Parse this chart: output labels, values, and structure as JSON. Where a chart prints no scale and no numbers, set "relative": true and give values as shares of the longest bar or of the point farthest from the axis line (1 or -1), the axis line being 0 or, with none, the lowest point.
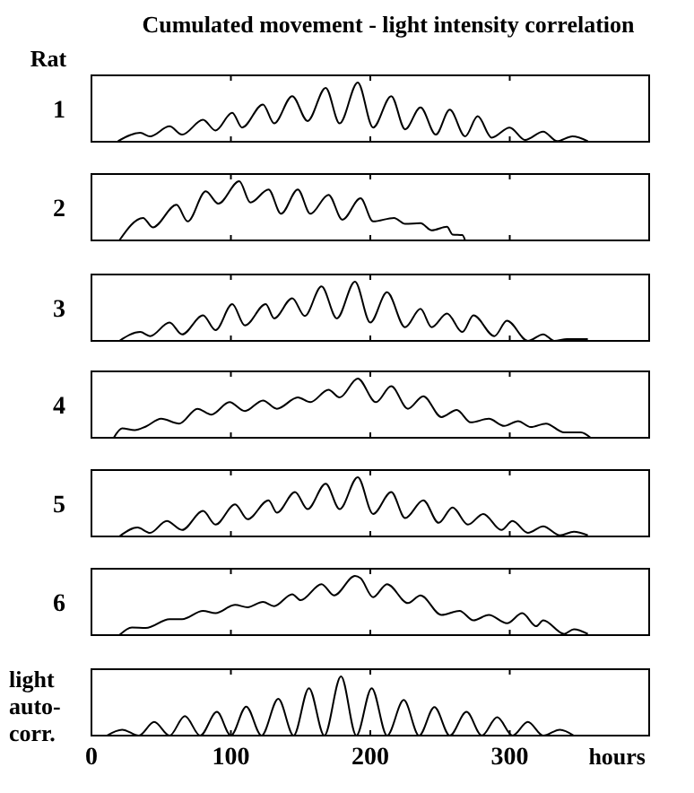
{
  "chart_data": [
    {
      "type": "line",
      "title": "Cumulated movement - light intensity correlation",
      "annotations": [
        "Rat"
      ],
      "ylabel": "1",
      "relative": true,
      "color": "#000000",
      "xlim": [
        0,
        400
      ],
      "xticks": [
        0,
        100,
        200,
        300
      ],
      "tick_labels": false,
      "x": [
        19,
        35,
        42,
        56,
        65,
        80,
        89,
        101,
        108,
        123,
        131,
        144,
        155,
        168,
        178,
        191,
        202,
        215,
        225,
        236,
        247,
        257,
        268,
        277,
        287,
        300,
        311,
        324,
        334,
        345,
        356
      ],
      "values": [
        0.01,
        0.15,
        0.09,
        0.26,
        0.12,
        0.37,
        0.19,
        0.49,
        0.24,
        0.63,
        0.31,
        0.77,
        0.35,
        0.91,
        0.31,
        1,
        0.24,
        0.77,
        0.21,
        0.58,
        0.12,
        0.54,
        0.09,
        0.43,
        0.07,
        0.24,
        0.03,
        0.17,
        0.01,
        0.09,
        0.01
      ]
    },
    {
      "type": "line",
      "ylabel": "2",
      "relative": true,
      "color": "#000000",
      "xlim": [
        0,
        400
      ],
      "xticks": [
        0,
        100,
        200,
        300
      ],
      "tick_labels": false,
      "x": [
        20,
        37,
        44,
        61,
        69,
        82,
        91,
        106,
        114,
        127,
        136,
        148,
        157,
        170,
        180,
        193,
        202,
        217,
        225,
        236,
        244,
        255,
        259,
        266,
        268
      ],
      "values": [
        0,
        0.38,
        0.22,
        0.6,
        0.32,
        0.83,
        0.62,
        1,
        0.64,
        0.86,
        0.45,
        0.86,
        0.45,
        0.77,
        0.35,
        0.71,
        0.32,
        0.38,
        0.28,
        0.29,
        0.17,
        0.23,
        0.1,
        0.09,
        0
      ]
    },
    {
      "type": "line",
      "ylabel": "3",
      "relative": true,
      "color": "#000000",
      "xlim": [
        0,
        400
      ],
      "xticks": [
        0,
        100,
        200,
        300
      ],
      "tick_labels": false,
      "x": [
        20,
        35,
        42,
        56,
        65,
        80,
        89,
        101,
        110,
        125,
        131,
        144,
        153,
        165,
        176,
        189,
        200,
        212,
        225,
        236,
        244,
        255,
        266,
        274,
        289,
        298,
        313,
        324,
        332,
        341,
        356
      ],
      "values": [
        0,
        0.15,
        0.08,
        0.31,
        0.11,
        0.43,
        0.18,
        0.62,
        0.26,
        0.62,
        0.38,
        0.72,
        0.42,
        0.92,
        0.38,
        1,
        0.31,
        0.82,
        0.23,
        0.54,
        0.23,
        0.46,
        0.15,
        0.43,
        0.08,
        0.34,
        0,
        0.11,
        0,
        0.03,
        0.03
      ]
    },
    {
      "type": "line",
      "ylabel": "4",
      "relative": true,
      "color": "#000000",
      "xlim": [
        0,
        400
      ],
      "xticks": [
        0,
        100,
        200,
        300
      ],
      "tick_labels": false,
      "x": [
        16,
        22,
        31,
        39,
        50,
        63,
        76,
        86,
        99,
        110,
        123,
        133,
        148,
        157,
        170,
        178,
        191,
        204,
        215,
        227,
        238,
        251,
        262,
        272,
        285,
        296,
        306,
        315,
        326,
        339,
        351,
        358
      ],
      "values": [
        0,
        0.16,
        0.13,
        0.19,
        0.32,
        0.24,
        0.49,
        0.39,
        0.6,
        0.45,
        0.63,
        0.49,
        0.68,
        0.6,
        0.81,
        0.68,
        1,
        0.6,
        0.87,
        0.49,
        0.7,
        0.35,
        0.47,
        0.26,
        0.32,
        0.2,
        0.28,
        0.18,
        0.24,
        0.09,
        0.09,
        0
      ]
    },
    {
      "type": "line",
      "ylabel": "5",
      "relative": true,
      "color": "#000000",
      "xlim": [
        0,
        400
      ],
      "xticks": [
        0,
        100,
        200,
        300
      ],
      "tick_labels": false,
      "x": [
        20,
        33,
        42,
        54,
        65,
        80,
        89,
        103,
        112,
        127,
        133,
        146,
        155,
        168,
        178,
        191,
        202,
        215,
        225,
        238,
        249,
        259,
        270,
        281,
        294,
        302,
        313,
        324,
        336,
        346,
        356
      ],
      "values": [
        0,
        0.15,
        0.06,
        0.26,
        0.11,
        0.43,
        0.2,
        0.54,
        0.29,
        0.61,
        0.4,
        0.75,
        0.46,
        0.89,
        0.46,
        1,
        0.38,
        0.75,
        0.31,
        0.61,
        0.23,
        0.49,
        0.2,
        0.38,
        0.11,
        0.26,
        0.06,
        0.17,
        0.02,
        0.08,
        0.02
      ]
    },
    {
      "type": "line",
      "ylabel": "6",
      "relative": true,
      "color": "#000000",
      "xlim": [
        0,
        400
      ],
      "xticks": [
        0,
        100,
        200,
        300
      ],
      "tick_labels": false,
      "x": [
        20,
        29,
        39,
        56,
        65,
        80,
        89,
        103,
        112,
        123,
        131,
        144,
        150,
        165,
        174,
        189,
        193,
        202,
        212,
        227,
        236,
        251,
        264,
        274,
        285,
        298,
        309,
        319,
        324,
        339,
        346,
        356
      ],
      "values": [
        0,
        0.13,
        0.12,
        0.27,
        0.27,
        0.41,
        0.37,
        0.51,
        0.47,
        0.56,
        0.49,
        0.69,
        0.59,
        0.86,
        0.67,
        1,
        0.96,
        0.64,
        0.86,
        0.54,
        0.67,
        0.34,
        0.41,
        0.25,
        0.34,
        0.2,
        0.37,
        0.15,
        0.25,
        0.02,
        0.1,
        0.02
      ]
    },
    {
      "type": "line",
      "ylabel": "light auto-corr.",
      "xlabel": "hours",
      "relative": true,
      "color": "#000000",
      "xlim": [
        0,
        400
      ],
      "xticks": [
        0,
        100,
        200,
        300
      ],
      "x": [
        11,
        22,
        34,
        45,
        56,
        67,
        78,
        90,
        100,
        111,
        122,
        134,
        145,
        156,
        167,
        179,
        190,
        201,
        212,
        224,
        235,
        246,
        257,
        269,
        280,
        291,
        302,
        313,
        324,
        336,
        346
      ],
      "values": [
        0,
        0.1,
        0,
        0.23,
        0,
        0.33,
        0,
        0.4,
        0,
        0.49,
        0,
        0.62,
        0,
        0.8,
        0,
        1,
        0,
        0.8,
        0,
        0.6,
        0,
        0.48,
        0,
        0.4,
        0,
        0.31,
        0,
        0.23,
        0,
        0.1,
        0
      ]
    }
  ]
}
